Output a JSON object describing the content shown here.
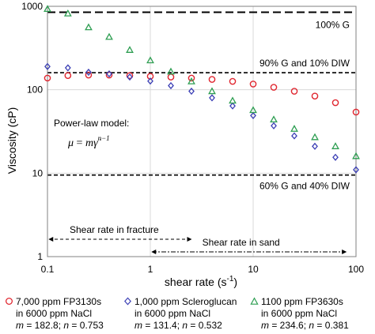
{
  "chart_data": {
    "type": "scatter",
    "xscale": "log",
    "yscale": "log",
    "xlim": [
      0.1,
      100
    ],
    "ylim": [
      1,
      1000
    ],
    "xlabel": "shear rate (s",
    "xlabel_sup": "-1",
    "xlabel_end": ")",
    "ylabel": "Viscosity (cP)",
    "xticks": [
      "0.1",
      "1",
      "10",
      "100"
    ],
    "yticks": [
      "1",
      "10",
      "100",
      "1000"
    ],
    "grid": true,
    "series": [
      {
        "name": "7,000 ppm FP3130s",
        "name_line2": "in 6000 ppm NaCl",
        "m_label": "m",
        "m_value": "= 182.8; ",
        "n_label": "n",
        "n_value": "= 0.753",
        "marker": "circle",
        "color": "#e0262f",
        "x": [
          0.1,
          0.158,
          0.251,
          0.398,
          0.631,
          1.0,
          1.585,
          2.512,
          3.981,
          6.31,
          10.0,
          15.85,
          25.12,
          39.81,
          63.1,
          100.0
        ],
        "y": [
          138,
          148,
          150,
          150,
          148,
          145,
          142,
          138,
          133,
          126,
          117,
          107,
          96,
          84,
          70,
          54
        ]
      },
      {
        "name": "1,000 ppm Scleroglucan",
        "name_line2": "in 6000 ppm NaCl",
        "m_label": "m",
        "m_value": "= 131.4; ",
        "n_label": "n",
        "n_value": "= 0.532",
        "marker": "diamond",
        "color": "#3b3fb5",
        "x": [
          0.1,
          0.158,
          0.251,
          0.398,
          0.631,
          1.0,
          1.585,
          2.512,
          3.981,
          6.31,
          10.0,
          15.85,
          25.12,
          39.81,
          63.1,
          100.0
        ],
        "y": [
          190,
          183,
          162,
          155,
          142,
          127,
          112,
          96,
          80,
          64,
          49,
          37,
          28,
          21,
          15.5,
          11
        ]
      },
      {
        "name": "1100 ppm FP3630s",
        "name_line2": "in 6000 ppm NaCl",
        "m_label": "m",
        "m_value": "= 234.6; ",
        "n_label": "n",
        "n_value": "= 0.381",
        "marker": "triangle",
        "color": "#2e9e52",
        "x": [
          0.1,
          0.158,
          0.251,
          0.398,
          0.631,
          1.0,
          1.585,
          2.512,
          3.981,
          6.31,
          10.0,
          15.85,
          25.12,
          39.81,
          63.1,
          100.0
        ],
        "y": [
          930,
          820,
          560,
          430,
          300,
          225,
          165,
          126,
          96,
          74,
          57,
          44,
          34,
          27,
          21,
          16
        ]
      }
    ],
    "reference_lines": [
      {
        "label": "100% G",
        "y": 850,
        "style": "dashed"
      },
      {
        "label": "90% G and 10% DIW",
        "y": 160,
        "style": "short-dashed"
      },
      {
        "label": "60% G and 40% DIW",
        "y": 9.5,
        "style": "short-dashed"
      }
    ],
    "ranges": [
      {
        "label": "Shear rate in fracture",
        "x": [
          0.1,
          2.5
        ]
      },
      {
        "label": "Shear rate in sand",
        "x": [
          1.0,
          80
        ]
      }
    ],
    "model": {
      "title": "Power-law model:",
      "equation_lhs": "μ",
      "equation_eq": " = ",
      "equation_m": "m",
      "equation_gamma": "γ̇",
      "equation_exp": "n−1"
    }
  }
}
